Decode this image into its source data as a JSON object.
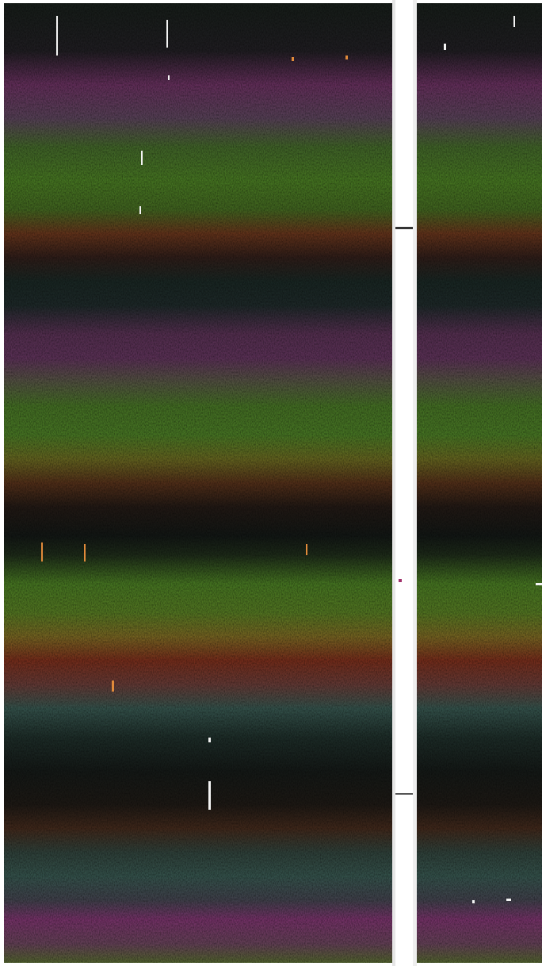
{
  "image": {
    "description_visible_text": "",
    "palette": {
      "background": "#ffffff",
      "border": "#cfcfcf",
      "band_black": "#0f1512",
      "band_magenta": "#6a2d5e",
      "band_green": "#3f6a1e",
      "band_olive": "#66681e",
      "band_red": "#6a2418",
      "band_teal": "#2f4a44",
      "streak": "#ffffff"
    }
  }
}
